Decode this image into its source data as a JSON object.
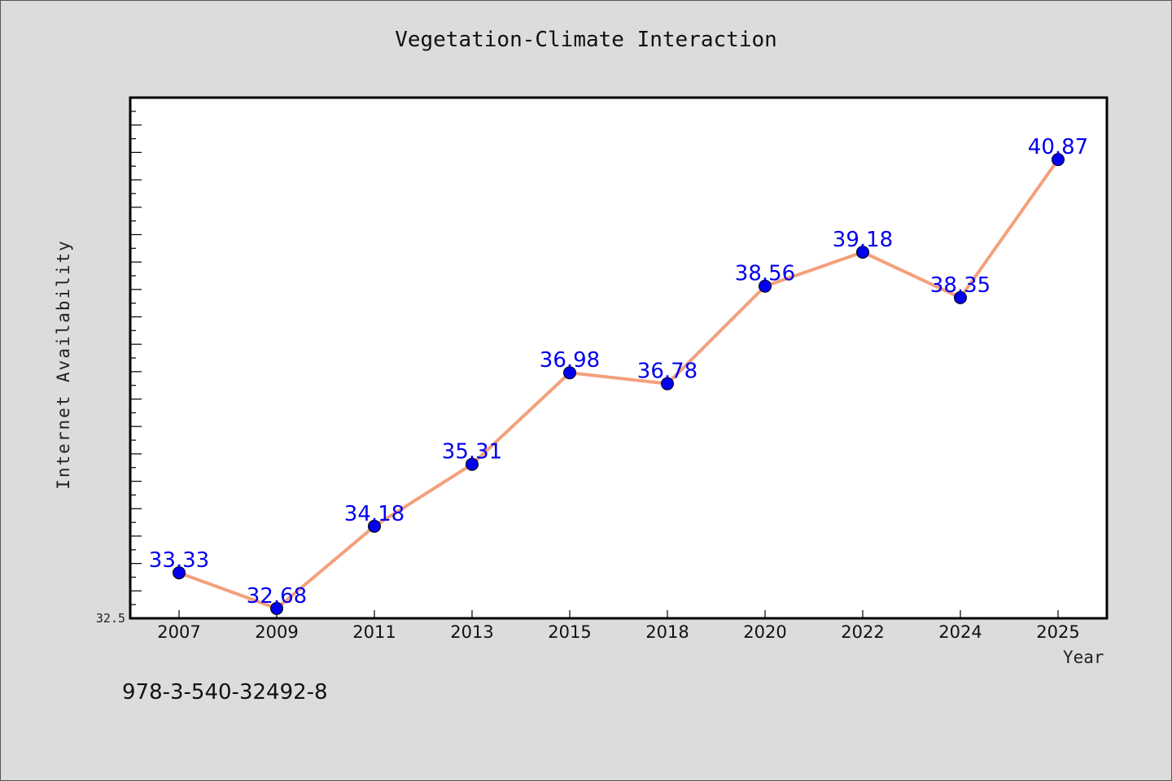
{
  "chart_data": {
    "type": "line",
    "title": "Vegetation-Climate Interaction",
    "xlabel": "Year",
    "ylabel": "Internet Availability",
    "categories": [
      "2007",
      "2009",
      "2011",
      "2013",
      "2015",
      "2018",
      "2020",
      "2022",
      "2024",
      "2025"
    ],
    "series": [
      {
        "values": [
          33.33,
          32.68,
          34.18,
          35.31,
          36.98,
          36.78,
          38.56,
          39.18,
          38.35,
          40.87
        ]
      }
    ],
    "y_tick_labels": [
      "32.5"
    ],
    "ylim": [
      32.5,
      42.0
    ],
    "grid": false,
    "line_color": "#f4a07c",
    "marker_color": "#0000ee",
    "label_color": "#0000ee"
  },
  "footer_code": "978-3-540-32492-8"
}
